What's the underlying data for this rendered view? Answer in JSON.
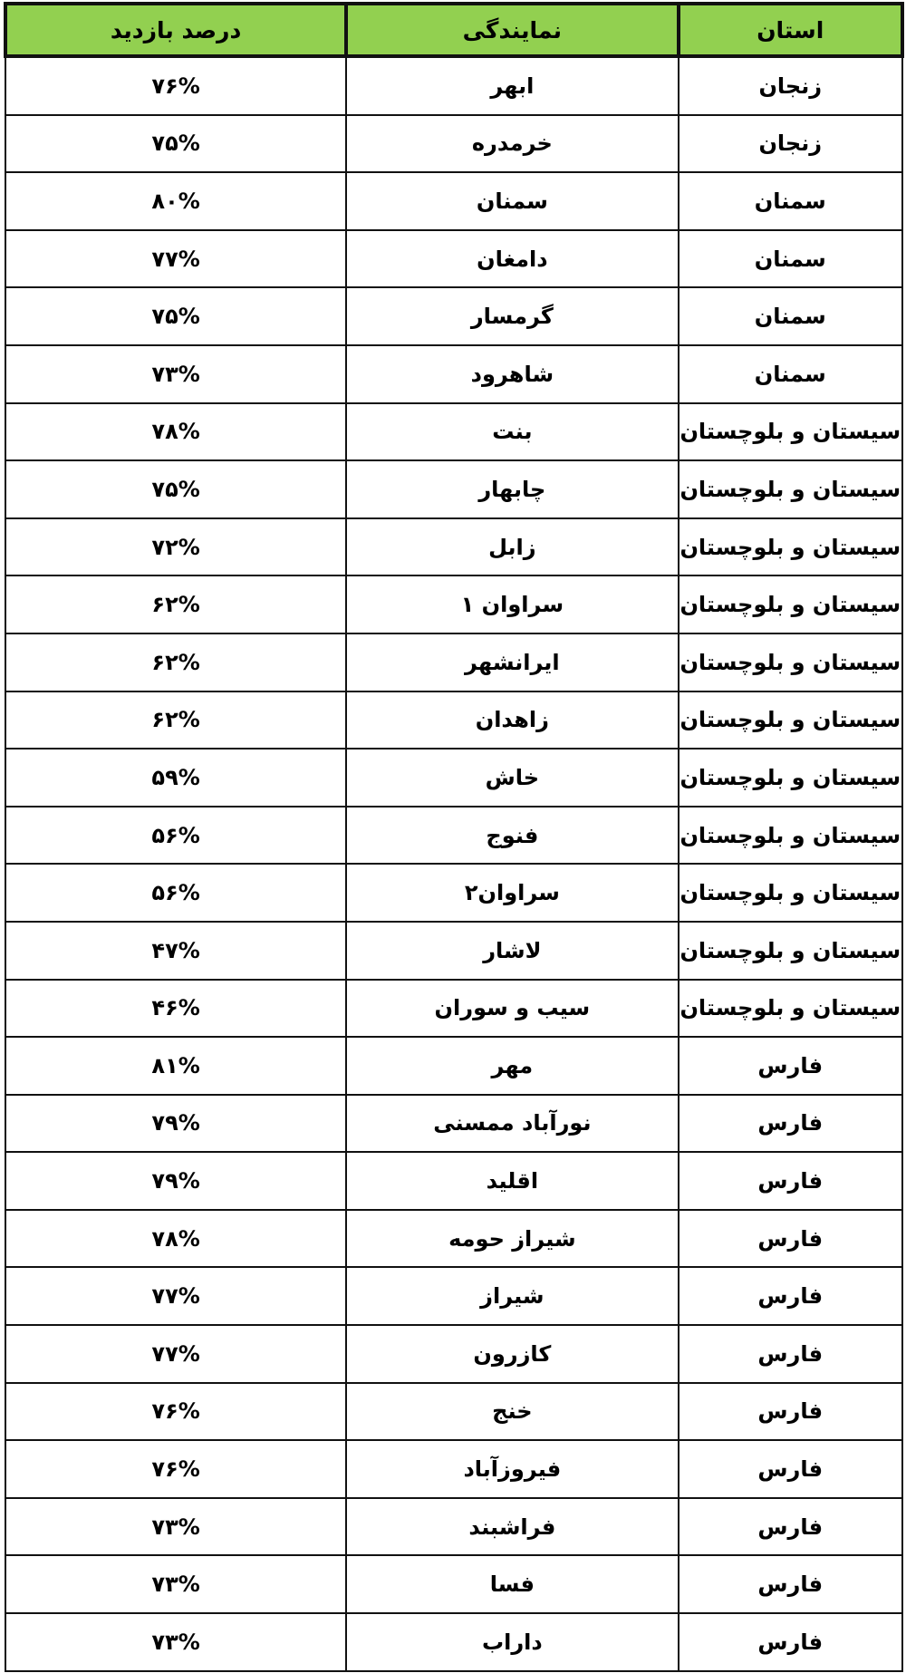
{
  "header_color": "#92d050",
  "headers": {
    "province": "استان",
    "representative": "نمایندگی",
    "visit_percent": "درصد بازدید"
  },
  "rows": [
    {
      "province": "زنجان",
      "representative": "ابهر",
      "percent": "۷۶%"
    },
    {
      "province": "زنجان",
      "representative": "خرمدره",
      "percent": "۷۵%"
    },
    {
      "province": "سمنان",
      "representative": "سمنان",
      "percent": "۸۰%"
    },
    {
      "province": "سمنان",
      "representative": "دامغان",
      "percent": "۷۷%"
    },
    {
      "province": "سمنان",
      "representative": "گرمسار",
      "percent": "۷۵%"
    },
    {
      "province": "سمنان",
      "representative": "شاهرود",
      "percent": "۷۳%"
    },
    {
      "province": "سیستان و بلوچستان",
      "representative": "بنت",
      "percent": "۷۸%"
    },
    {
      "province": "سیستان و بلوچستان",
      "representative": "چابهار",
      "percent": "۷۵%"
    },
    {
      "province": "سیستان و بلوچستان",
      "representative": "زابل",
      "percent": "۷۲%"
    },
    {
      "province": "سیستان و بلوچستان",
      "representative": "سراوان ۱",
      "percent": "۶۲%"
    },
    {
      "province": "سیستان و بلوچستان",
      "representative": "ایرانشهر",
      "percent": "۶۲%"
    },
    {
      "province": "سیستان و بلوچستان",
      "representative": "زاهدان",
      "percent": "۶۲%"
    },
    {
      "province": "سیستان و بلوچستان",
      "representative": "خاش",
      "percent": "۵۹%"
    },
    {
      "province": "سیستان و بلوچستان",
      "representative": "فنوج",
      "percent": "۵۶%"
    },
    {
      "province": "سیستان و بلوچستان",
      "representative": "سراوان۲",
      "percent": "۵۶%"
    },
    {
      "province": "سیستان و بلوچستان",
      "representative": "لاشار",
      "percent": "۴۷%"
    },
    {
      "province": "سیستان و بلوچستان",
      "representative": "سیب و سوران",
      "percent": "۴۶%"
    },
    {
      "province": "فارس",
      "representative": "مهر",
      "percent": "۸۱%"
    },
    {
      "province": "فارس",
      "representative": "نورآباد ممسنی",
      "percent": "۷۹%"
    },
    {
      "province": "فارس",
      "representative": "اقلید",
      "percent": "۷۹%"
    },
    {
      "province": "فارس",
      "representative": "شیراز حومه",
      "percent": "۷۸%"
    },
    {
      "province": "فارس",
      "representative": "شیراز",
      "percent": "۷۷%"
    },
    {
      "province": "فارس",
      "representative": "کازرون",
      "percent": "۷۷%"
    },
    {
      "province": "فارس",
      "representative": "خنج",
      "percent": "۷۶%"
    },
    {
      "province": "فارس",
      "representative": "فیروزآباد",
      "percent": "۷۶%"
    },
    {
      "province": "فارس",
      "representative": "فراشبند",
      "percent": "۷۳%"
    },
    {
      "province": "فارس",
      "representative": "فسا",
      "percent": "۷۳%"
    },
    {
      "province": "فارس",
      "representative": "داراب",
      "percent": "۷۳%"
    }
  ]
}
